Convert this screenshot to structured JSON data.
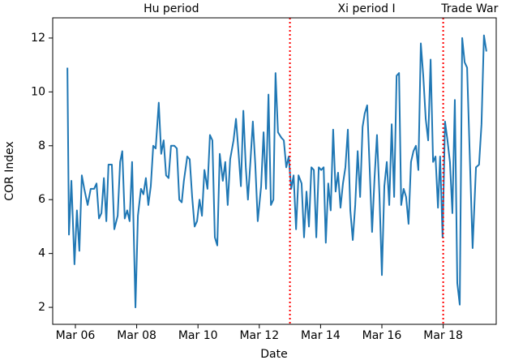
{
  "chart_data": {
    "type": "line",
    "xlabel": "Date",
    "ylabel": "COR Index",
    "x": [
      5.74,
      5.79,
      5.87,
      5.97,
      6.05,
      6.13,
      6.21,
      6.29,
      6.4,
      6.5,
      6.61,
      6.69,
      6.77,
      6.85,
      6.93,
      7.01,
      7.08,
      7.19,
      7.27,
      7.38,
      7.46,
      7.53,
      7.61,
      7.69,
      7.77,
      7.85,
      7.96,
      8.04,
      8.14,
      8.22,
      8.3,
      8.38,
      8.46,
      8.54,
      8.62,
      8.72,
      8.8,
      8.88,
      8.96,
      9.04,
      9.12,
      9.23,
      9.31,
      9.39,
      9.47,
      9.54,
      9.65,
      9.73,
      9.81,
      9.89,
      9.97,
      10.05,
      10.13,
      10.21,
      10.31,
      10.39,
      10.47,
      10.55,
      10.63,
      10.71,
      10.81,
      10.89,
      10.97,
      11.05,
      11.16,
      11.24,
      11.32,
      11.4,
      11.48,
      11.56,
      11.63,
      11.71,
      11.79,
      11.87,
      11.95,
      12.06,
      12.14,
      12.22,
      12.3,
      12.38,
      12.46,
      12.53,
      12.61,
      12.72,
      12.8,
      12.88,
      12.96,
      13.04,
      13.12,
      13.2,
      13.28,
      13.38,
      13.46,
      13.54,
      13.62,
      13.7,
      13.78,
      13.86,
      13.94,
      14.02,
      14.1,
      14.17,
      14.25,
      14.33,
      14.41,
      14.49,
      14.57,
      14.65,
      14.73,
      14.81,
      14.89,
      14.97,
      15.05,
      15.13,
      15.21,
      15.29,
      15.37,
      15.44,
      15.52,
      15.6,
      15.68,
      15.76,
      15.84,
      15.92,
      16.0,
      16.08,
      16.16,
      16.24,
      16.32,
      16.4,
      16.48,
      16.56,
      16.63,
      16.71,
      16.79,
      16.87,
      16.95,
      17.03,
      17.11,
      17.19,
      17.27,
      17.35,
      17.43,
      17.51,
      17.59,
      17.67,
      17.75,
      17.83,
      17.9,
      17.98,
      18.06,
      18.14,
      18.22,
      18.3,
      18.38,
      18.46,
      18.54,
      18.62,
      18.7,
      18.78,
      18.86,
      18.96,
      19.07,
      19.17,
      19.25,
      19.33,
      19.41
    ],
    "series": [
      {
        "name": "COR Index",
        "color": "#1f77b4",
        "values": [
          10.9,
          4.7,
          6.7,
          3.6,
          5.6,
          4.1,
          6.9,
          6.4,
          5.8,
          6.4,
          6.4,
          6.6,
          5.3,
          5.5,
          6.8,
          5.2,
          7.3,
          7.3,
          4.9,
          5.4,
          7.4,
          7.8,
          5.3,
          5.6,
          5.2,
          7.4,
          2.0,
          5.4,
          6.4,
          6.2,
          6.8,
          5.8,
          6.5,
          8.0,
          7.9,
          9.6,
          7.7,
          8.2,
          6.9,
          6.8,
          8.0,
          8.0,
          7.9,
          6.0,
          5.9,
          6.7,
          7.6,
          7.5,
          6.1,
          5.0,
          5.2,
          6.0,
          5.4,
          7.1,
          6.4,
          8.4,
          8.2,
          4.6,
          4.3,
          7.7,
          6.7,
          7.4,
          5.8,
          7.5,
          8.2,
          9.0,
          7.8,
          6.5,
          9.3,
          7.2,
          6.0,
          7.4,
          8.9,
          7.3,
          5.2,
          6.5,
          8.5,
          6.4,
          9.9,
          5.8,
          6.0,
          10.7,
          8.5,
          8.3,
          8.2,
          7.2,
          7.6,
          6.4,
          6.9,
          4.9,
          6.9,
          6.6,
          4.6,
          6.3,
          5.0,
          7.2,
          7.1,
          4.6,
          7.2,
          7.1,
          7.2,
          4.4,
          6.6,
          5.6,
          8.6,
          6.3,
          7.0,
          5.7,
          6.6,
          7.2,
          8.6,
          5.6,
          4.5,
          5.8,
          7.8,
          6.1,
          8.7,
          9.2,
          9.5,
          7.2,
          4.8,
          6.8,
          8.4,
          6.2,
          3.2,
          6.5,
          7.4,
          5.8,
          8.8,
          6.1,
          10.6,
          10.7,
          5.8,
          6.4,
          6.1,
          5.1,
          7.4,
          7.8,
          8.0,
          7.1,
          11.8,
          10.6,
          9.0,
          8.2,
          11.2,
          7.4,
          7.6,
          5.7,
          7.6,
          4.6,
          8.9,
          8.2,
          7.4,
          5.5,
          9.7,
          2.9,
          2.1,
          12.0,
          11.1,
          10.9,
          7.9,
          4.2,
          7.2,
          7.3,
          8.8,
          12.1,
          11.5
        ]
      }
    ],
    "xlim": [
      5.26,
      19.73
    ],
    "ylim": [
      1.37,
      12.75
    ],
    "xticks": [
      {
        "value": 6,
        "label": "Mar 06"
      },
      {
        "value": 8,
        "label": "Mar 08"
      },
      {
        "value": 10,
        "label": "Mar 10"
      },
      {
        "value": 12,
        "label": "Mar 12"
      },
      {
        "value": 14,
        "label": "Mar 14"
      },
      {
        "value": 16,
        "label": "Mar 16"
      },
      {
        "value": 18,
        "label": "Mar 18"
      }
    ],
    "yticks": [
      2,
      4,
      6,
      8,
      10,
      12
    ],
    "vlines": [
      13,
      18
    ],
    "vline_color": "#ff0000",
    "periods": [
      "Hu period",
      "Xi period I",
      "Trade War"
    ],
    "grid": false
  }
}
